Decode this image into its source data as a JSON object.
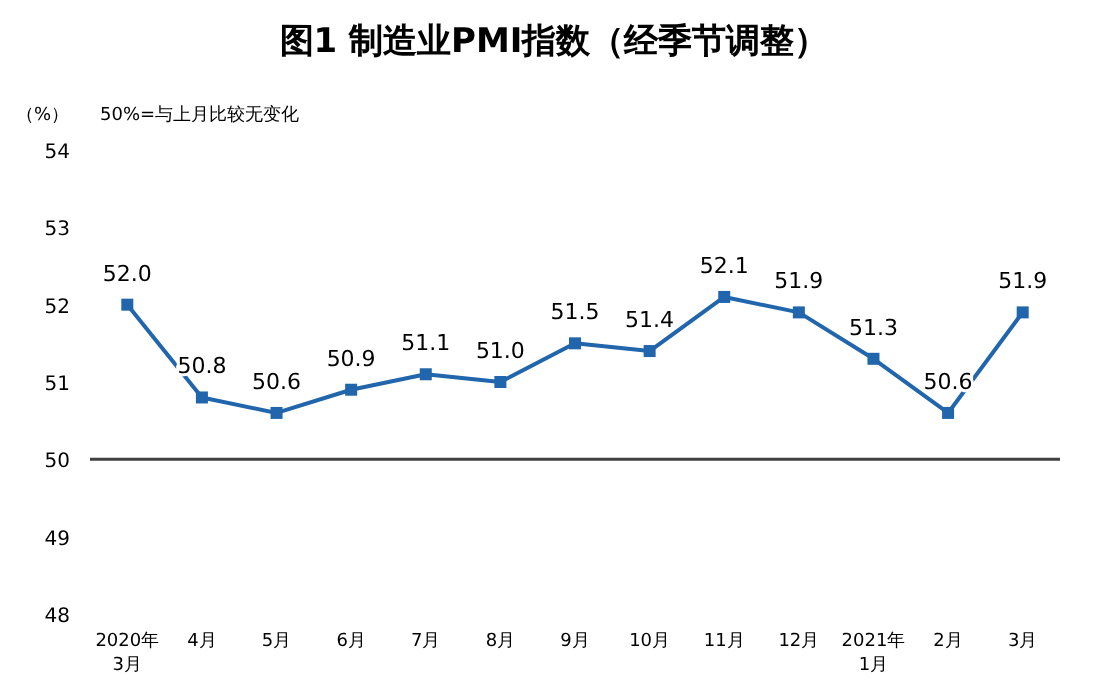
{
  "chart_data": {
    "type": "line",
    "title": "图1 制造业PMI指数（经季节调整）",
    "annotations": [
      "（%）",
      "50%=与上月比较无变化"
    ],
    "categories": [
      "2020年\n3月",
      "4月",
      "5月",
      "6月",
      "7月",
      "8月",
      "9月",
      "10月",
      "11月",
      "12月",
      "2021年\n1月",
      "2月",
      "3月"
    ],
    "values": [
      52.0,
      50.8,
      50.6,
      50.9,
      51.1,
      51.0,
      51.5,
      51.4,
      52.1,
      51.9,
      51.3,
      50.6,
      51.9
    ],
    "value_labels": [
      "52.0",
      "50.8",
      "50.6",
      "50.9",
      "51.1",
      "51.0",
      "51.5",
      "51.4",
      "52.1",
      "51.9",
      "51.3",
      "50.6",
      "51.9"
    ],
    "color": "#2166ac",
    "marker": "square",
    "ylim": [
      48,
      54
    ],
    "yticks": [
      48,
      49,
      50,
      51,
      52,
      53,
      54
    ],
    "ref_lines": [
      {
        "axis": "y",
        "value": 50,
        "color": "#404040"
      }
    ]
  }
}
